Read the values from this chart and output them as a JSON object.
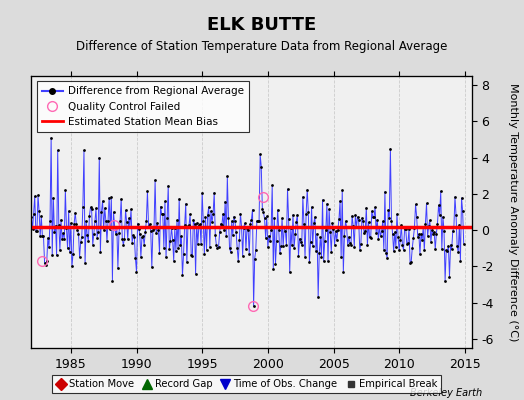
{
  "title": "ELK BUTTE",
  "subtitle": "Difference of Station Temperature Data from Regional Average",
  "ylabel_right": "Monthly Temperature Anomaly Difference (°C)",
  "credit": "Berkeley Earth",
  "xlim": [
    1982.0,
    2015.5
  ],
  "ylim": [
    -6.5,
    8.5
  ],
  "yticks": [
    -6,
    -4,
    -2,
    0,
    2,
    4,
    6,
    8
  ],
  "xticks": [
    1985,
    1990,
    1995,
    2000,
    2005,
    2010,
    2015
  ],
  "bias_value": 0.2,
  "line_color": "#4040FF",
  "bias_color": "#FF0000",
  "dot_color": "#000000",
  "qc_color": "#FF69B4",
  "bg_color": "#DCDCDC",
  "plot_bg_color": "#F0F0F0",
  "seed": 42,
  "n_points": 396,
  "qc_times": [
    1982.8,
    1988.3,
    1998.9,
    1999.6
  ],
  "qc_values": [
    -1.7,
    0.3,
    -4.2,
    1.85
  ],
  "spikes_up": [
    [
      1983.5,
      5.1
    ],
    [
      1984.0,
      4.4
    ],
    [
      1986.0,
      4.4
    ],
    [
      1987.2,
      4.0
    ],
    [
      1999.5,
      3.5
    ],
    [
      2009.3,
      4.5
    ]
  ],
  "spikes_down": [
    [
      1983.0,
      -1.8
    ],
    [
      1990.0,
      -2.3
    ],
    [
      1993.5,
      -2.5
    ],
    [
      1994.5,
      -2.4
    ],
    [
      1998.9,
      -4.2
    ],
    [
      2013.5,
      -2.8
    ]
  ]
}
